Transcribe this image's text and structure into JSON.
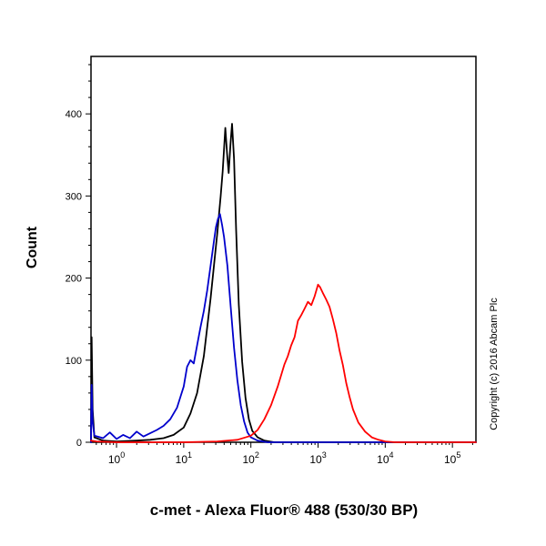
{
  "figure": {
    "copyright": "Copyright (c) 2016 Abcam Plc"
  },
  "chart_data": {
    "type": "line",
    "title": "",
    "xlabel": "c-met - Alexa Fluor® 488 (530/30 BP)",
    "ylabel": "Count",
    "x_scale": "log10",
    "x_tick_base": "10",
    "x_ticks_exponents": [
      0,
      1,
      2,
      3,
      4,
      5
    ],
    "xlim_log10": [
      -0.38,
      5.35
    ],
    "y_ticks": [
      0,
      100,
      200,
      300,
      400
    ],
    "ylim": [
      0,
      470
    ],
    "grid": false,
    "legend": "none",
    "series": [
      {
        "name": "black-curve",
        "color": "#000000",
        "points": [
          [
            -0.38,
            0
          ],
          [
            -0.37,
            128
          ],
          [
            -0.355,
            40
          ],
          [
            -0.33,
            6
          ],
          [
            -0.2,
            2
          ],
          [
            0.0,
            1
          ],
          [
            0.3,
            2
          ],
          [
            0.5,
            3
          ],
          [
            0.7,
            5
          ],
          [
            0.85,
            9
          ],
          [
            1.0,
            18
          ],
          [
            1.1,
            35
          ],
          [
            1.2,
            60
          ],
          [
            1.3,
            105
          ],
          [
            1.35,
            140
          ],
          [
            1.4,
            175
          ],
          [
            1.45,
            215
          ],
          [
            1.5,
            255
          ],
          [
            1.55,
            300
          ],
          [
            1.58,
            330
          ],
          [
            1.62,
            383
          ],
          [
            1.645,
            352
          ],
          [
            1.67,
            328
          ],
          [
            1.695,
            362
          ],
          [
            1.72,
            388
          ],
          [
            1.75,
            345
          ],
          [
            1.78,
            258
          ],
          [
            1.82,
            168
          ],
          [
            1.87,
            98
          ],
          [
            1.92,
            54
          ],
          [
            1.97,
            28
          ],
          [
            2.02,
            14
          ],
          [
            2.1,
            6
          ],
          [
            2.2,
            2
          ],
          [
            2.35,
            0
          ],
          [
            5.35,
            0
          ]
        ]
      },
      {
        "name": "blue-curve",
        "color": "#0000cc",
        "points": [
          [
            -0.38,
            0
          ],
          [
            -0.37,
            70
          ],
          [
            -0.355,
            25
          ],
          [
            -0.33,
            8
          ],
          [
            -0.2,
            5
          ],
          [
            -0.1,
            12
          ],
          [
            0.0,
            4
          ],
          [
            0.1,
            9
          ],
          [
            0.2,
            5
          ],
          [
            0.3,
            13
          ],
          [
            0.4,
            7
          ],
          [
            0.5,
            11
          ],
          [
            0.6,
            15
          ],
          [
            0.7,
            20
          ],
          [
            0.8,
            28
          ],
          [
            0.9,
            42
          ],
          [
            0.95,
            55
          ],
          [
            1.0,
            68
          ],
          [
            1.05,
            92
          ],
          [
            1.1,
            100
          ],
          [
            1.15,
            96
          ],
          [
            1.2,
            118
          ],
          [
            1.25,
            140
          ],
          [
            1.3,
            160
          ],
          [
            1.35,
            185
          ],
          [
            1.4,
            215
          ],
          [
            1.45,
            245
          ],
          [
            1.48,
            262
          ],
          [
            1.51,
            272
          ],
          [
            1.54,
            278
          ],
          [
            1.57,
            265
          ],
          [
            1.6,
            250
          ],
          [
            1.65,
            215
          ],
          [
            1.7,
            165
          ],
          [
            1.75,
            115
          ],
          [
            1.8,
            75
          ],
          [
            1.85,
            45
          ],
          [
            1.9,
            25
          ],
          [
            1.95,
            12
          ],
          [
            2.0,
            6
          ],
          [
            2.1,
            2
          ],
          [
            2.25,
            0
          ],
          [
            5.35,
            0
          ]
        ]
      },
      {
        "name": "red-curve",
        "color": "#ff0000",
        "points": [
          [
            -0.38,
            2
          ],
          [
            -0.3,
            1
          ],
          [
            0.0,
            0
          ],
          [
            1.0,
            0
          ],
          [
            1.5,
            1
          ],
          [
            1.8,
            3
          ],
          [
            2.0,
            8
          ],
          [
            2.1,
            15
          ],
          [
            2.2,
            28
          ],
          [
            2.3,
            45
          ],
          [
            2.4,
            68
          ],
          [
            2.5,
            95
          ],
          [
            2.55,
            105
          ],
          [
            2.6,
            118
          ],
          [
            2.65,
            128
          ],
          [
            2.7,
            148
          ],
          [
            2.75,
            155
          ],
          [
            2.8,
            163
          ],
          [
            2.85,
            171
          ],
          [
            2.9,
            167
          ],
          [
            2.95,
            178
          ],
          [
            3.0,
            192
          ],
          [
            3.03,
            189
          ],
          [
            3.07,
            182
          ],
          [
            3.12,
            174
          ],
          [
            3.17,
            165
          ],
          [
            3.22,
            150
          ],
          [
            3.27,
            133
          ],
          [
            3.32,
            112
          ],
          [
            3.37,
            94
          ],
          [
            3.42,
            72
          ],
          [
            3.47,
            55
          ],
          [
            3.52,
            40
          ],
          [
            3.6,
            24
          ],
          [
            3.7,
            13
          ],
          [
            3.8,
            6
          ],
          [
            3.9,
            3
          ],
          [
            4.0,
            1
          ],
          [
            4.15,
            0
          ],
          [
            5.35,
            0
          ]
        ]
      }
    ]
  }
}
